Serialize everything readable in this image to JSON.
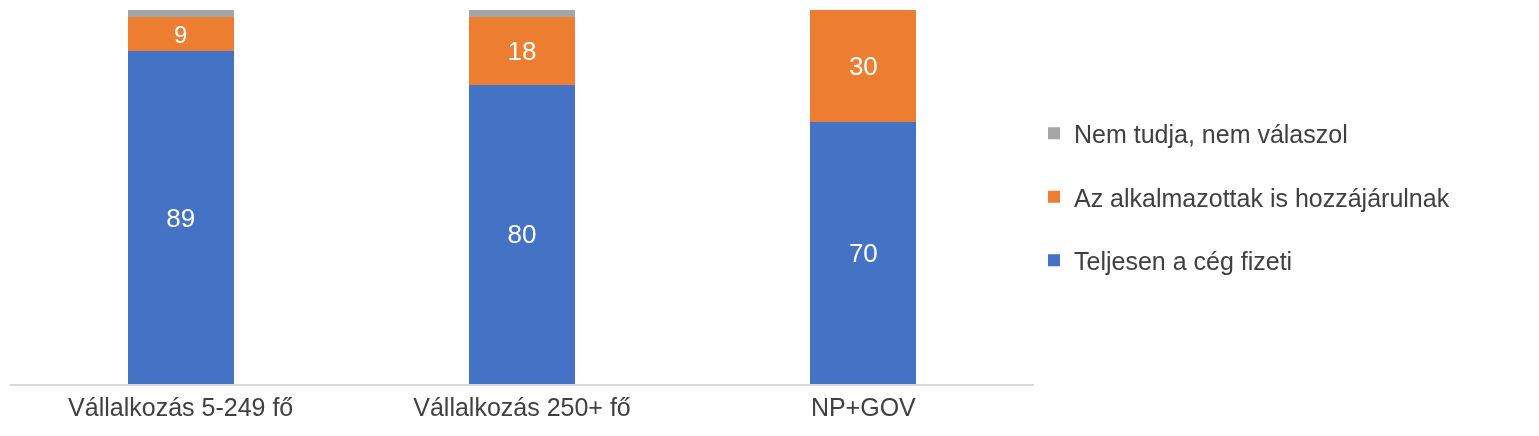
{
  "chart_data": {
    "type": "bar",
    "stacked": true,
    "categories": [
      "Vállalkozás 5-249 fő",
      "Vállalkozás 250+ fő",
      "NP+GOV"
    ],
    "series": [
      {
        "name": "Teljesen a cég fizeti",
        "color": "#4472c4",
        "values": [
          89,
          80,
          70
        ],
        "value_labels": [
          "89",
          "80",
          "70"
        ]
      },
      {
        "name": "Az alkalmazottak is hozzájárulnak",
        "color": "#ed7d31",
        "values": [
          9,
          18,
          30
        ],
        "value_labels": [
          "9",
          "18",
          "30"
        ]
      },
      {
        "name": "Nem tudja, nem válaszol",
        "color": "#a5a5a5",
        "values": [
          2,
          2,
          0
        ],
        "value_labels": [
          null,
          null,
          null
        ]
      }
    ],
    "ylim": [
      0,
      100
    ],
    "legend": "right"
  }
}
